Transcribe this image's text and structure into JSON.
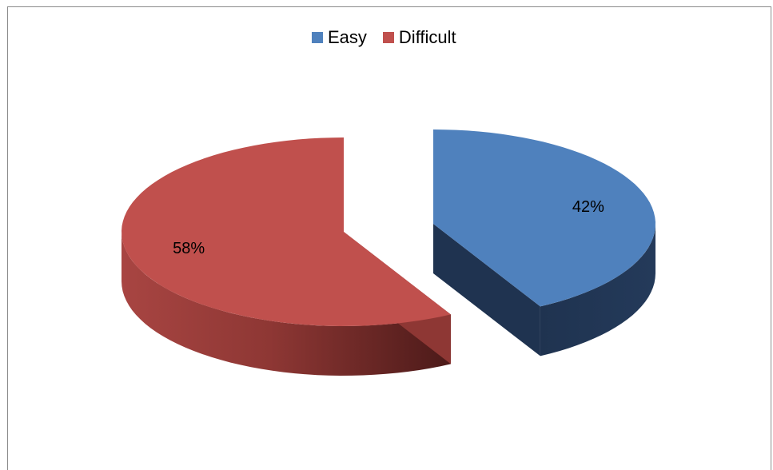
{
  "chart_data": {
    "type": "pie",
    "title": "",
    "series": [
      {
        "name": "Easy",
        "value": 42,
        "label": "42%",
        "color": "#4f81bd"
      },
      {
        "name": "Difficult",
        "value": 58,
        "label": "58%",
        "color": "#c0504d"
      }
    ],
    "legend_position": "top",
    "style": "3d-exploded"
  }
}
